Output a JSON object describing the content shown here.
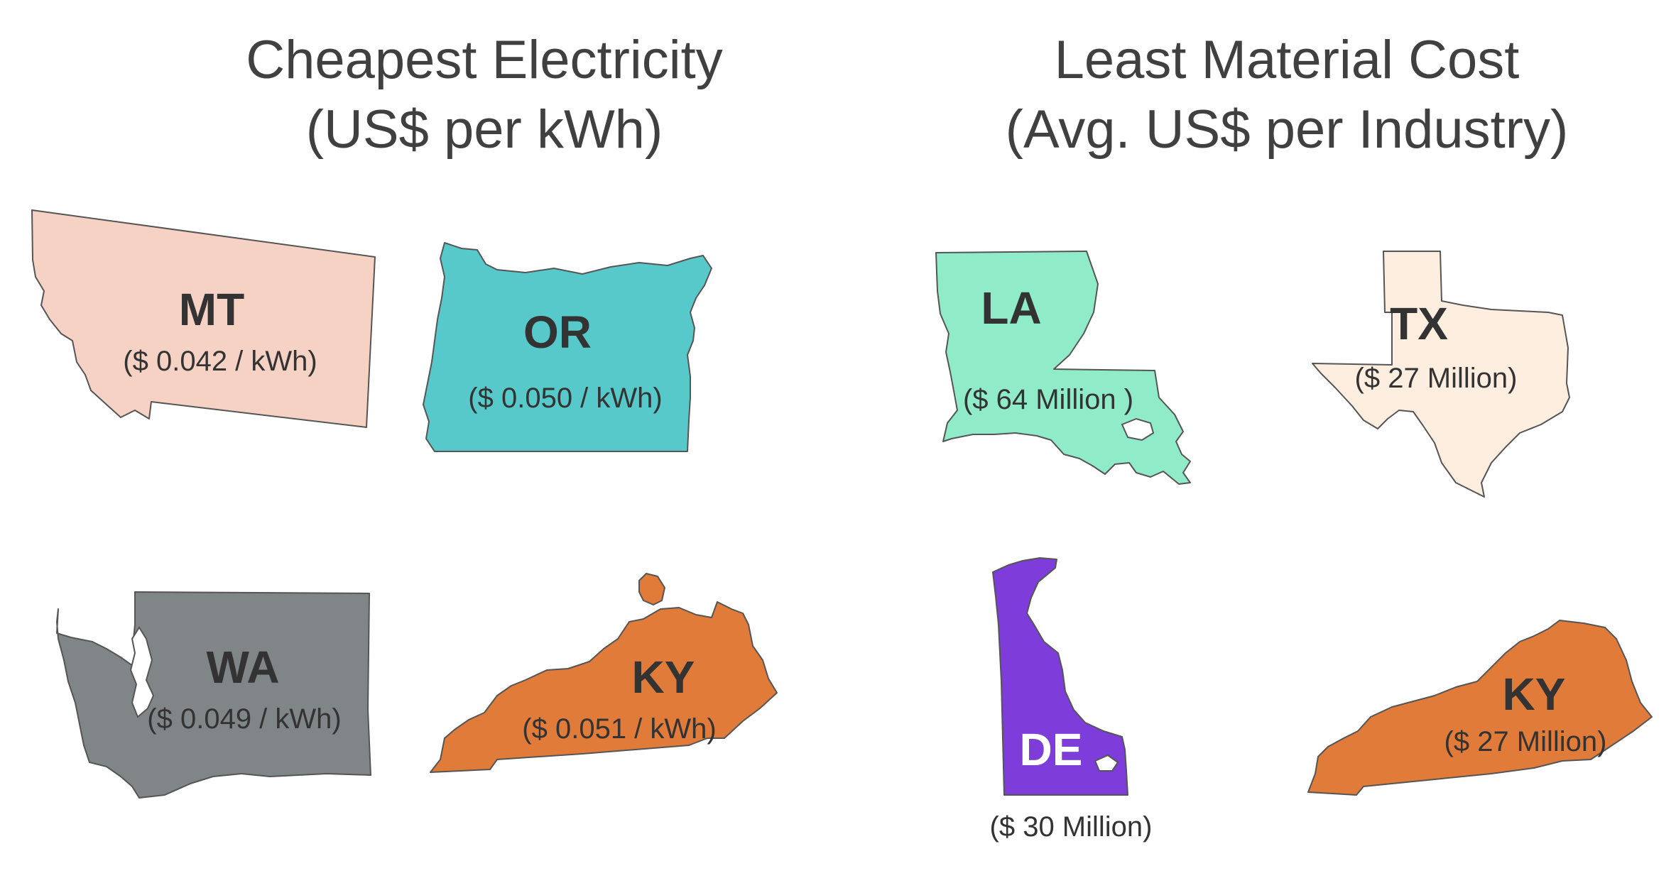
{
  "colors": {
    "text": "#404040",
    "label": "#333333",
    "outline": "#555555"
  },
  "left_panel": {
    "title_line1": "Cheapest Electricity",
    "title_line2": "(US$ per kWh)",
    "states": [
      {
        "abbr": "MT",
        "value": "($ 0.042 / kWh)",
        "fill": "#F6D2C4"
      },
      {
        "abbr": "OR",
        "value": "($ 0.050 / kWh)",
        "fill": "#57C9CA"
      },
      {
        "abbr": "WA",
        "value": "($ 0.049 / kWh)",
        "fill": "#808587"
      },
      {
        "abbr": "KY",
        "value": "($ 0.051 / kWh)",
        "fill": "#E07B39"
      }
    ]
  },
  "right_panel": {
    "title_line1": "Least Material Cost",
    "title_line2": "(Avg. US$ per Industry)",
    "states": [
      {
        "abbr": "LA",
        "value": "($ 64 Million )",
        "fill": "#90EBC8"
      },
      {
        "abbr": "TX",
        "value": "($ 27 Million)",
        "fill": "#FDEEDF"
      },
      {
        "abbr": "DE",
        "value": "($ 30 Million)",
        "fill": "#7E3CDB"
      },
      {
        "abbr": "KY",
        "value": "($ 27 Million)",
        "fill": "#E07B39"
      }
    ]
  }
}
